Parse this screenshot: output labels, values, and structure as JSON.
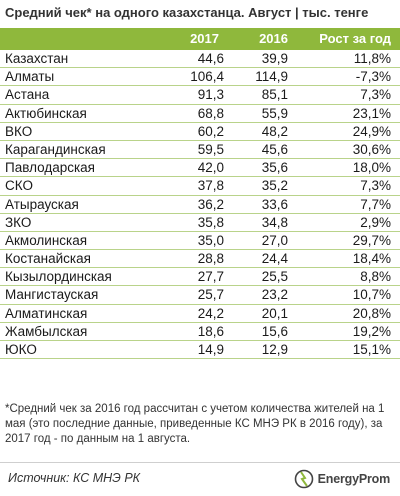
{
  "title": "Средний чек* на одного казахстанца. Август | тыс. тенге",
  "table": {
    "headers": [
      "",
      "2017",
      "2016",
      "Рост за год"
    ],
    "rows": [
      {
        "name": "Казахстан",
        "y2017": "44,6",
        "y2016": "39,9",
        "growth": "11,8%"
      },
      {
        "name": "Алматы",
        "y2017": "106,4",
        "y2016": "114,9",
        "growth": "-7,3%"
      },
      {
        "name": "Астана",
        "y2017": "91,3",
        "y2016": "85,1",
        "growth": "7,3%"
      },
      {
        "name": "Актюбинская",
        "y2017": "68,8",
        "y2016": "55,9",
        "growth": "23,1%"
      },
      {
        "name": "ВКО",
        "y2017": "60,2",
        "y2016": "48,2",
        "growth": "24,9%"
      },
      {
        "name": "Карагандинская",
        "y2017": "59,5",
        "y2016": "45,6",
        "growth": "30,6%"
      },
      {
        "name": "Павлодарская",
        "y2017": "42,0",
        "y2016": "35,6",
        "growth": "18,0%"
      },
      {
        "name": "СКО",
        "y2017": "37,8",
        "y2016": "35,2",
        "growth": "7,3%"
      },
      {
        "name": "Атырауская",
        "y2017": "36,2",
        "y2016": "33,6",
        "growth": "7,7%"
      },
      {
        "name": "ЗКО",
        "y2017": "35,8",
        "y2016": "34,8",
        "growth": "2,9%"
      },
      {
        "name": "Акмолинская",
        "y2017": "35,0",
        "y2016": "27,0",
        "growth": "29,7%"
      },
      {
        "name": "Костанайская",
        "y2017": "28,8",
        "y2016": "24,4",
        "growth": "18,4%"
      },
      {
        "name": "Кызылординская",
        "y2017": "27,7",
        "y2016": "25,5",
        "growth": "8,8%"
      },
      {
        "name": "Мангистауская",
        "y2017": "25,7",
        "y2016": "23,2",
        "growth": "10,7%"
      },
      {
        "name": "Алматинская",
        "y2017": "24,2",
        "y2016": "20,1",
        "growth": "20,8%"
      },
      {
        "name": "Жамбылская",
        "y2017": "18,6",
        "y2016": "15,6",
        "growth": "19,2%"
      },
      {
        "name": "ЮКО",
        "y2017": "14,9",
        "y2016": "12,9",
        "growth": "15,1%"
      }
    ]
  },
  "footnote": "*Средний чек за 2016 год рассчитан с учетом количества жителей на 1 мая (это последние данные, приведенные КС МНЭ РК в 2016 году), за 2017 год - по данным на 1 августа.",
  "source": "Источник: КС МНЭ РК",
  "logo": {
    "text": "EnergyProm",
    "icon": "energyprom-logo-icon"
  },
  "colors": {
    "header_bg": "#8fb83c",
    "row_border": "#b9d38a",
    "header_text": "#ffffff"
  }
}
